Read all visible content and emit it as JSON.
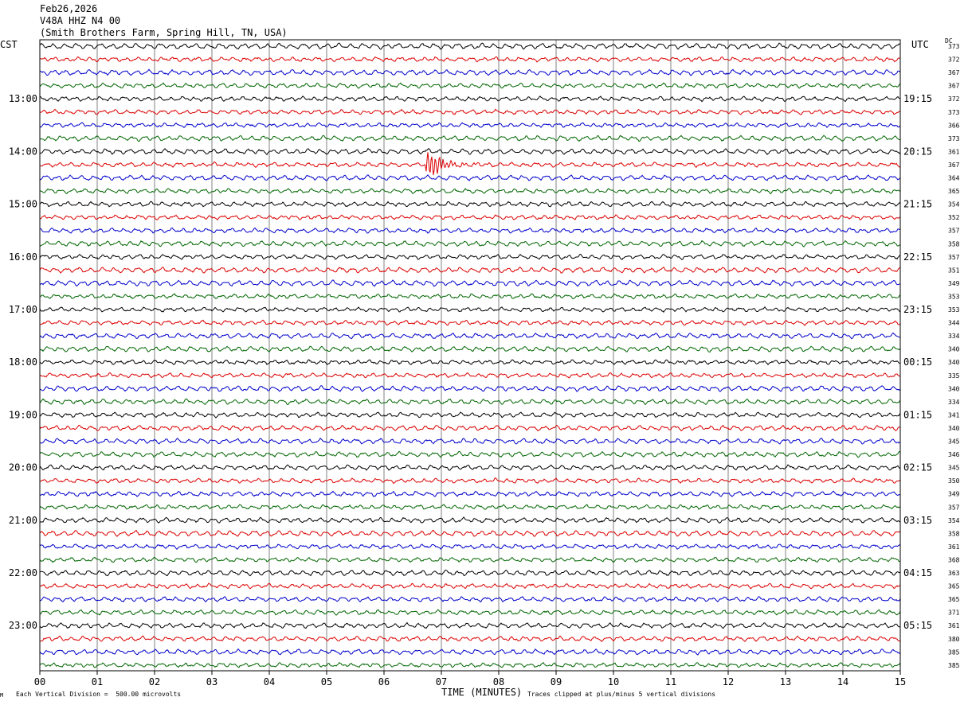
{
  "header": {
    "date": "Feb26,2026",
    "station": "V48A HHZ N4 00",
    "location": "(Smith Brothers Farm, Spring Hill, TN, USA)"
  },
  "axis_labels": {
    "left_timezone": "CST",
    "right_timezone": "UTC",
    "dc_label": "DC",
    "xlabel": "TIME (MINUTES)"
  },
  "footer": {
    "vertical_division": "Each Vertical Division =  500.00 microvolts",
    "clip_note": "Traces clipped at plus/minus 5 vertical divisions",
    "logo": "M"
  },
  "chart_data": {
    "type": "line",
    "xlim": [
      0,
      15
    ],
    "x_ticks": [
      "00",
      "01",
      "02",
      "03",
      "04",
      "05",
      "06",
      "07",
      "08",
      "09",
      "10",
      "11",
      "12",
      "13",
      "14",
      "15"
    ],
    "rows": 48,
    "trace_colors": [
      "#000000",
      "#dd0000",
      "#0000cc",
      "#006600"
    ],
    "left_hour_labels": [
      {
        "row": 4,
        "label": "13:00"
      },
      {
        "row": 8,
        "label": "14:00"
      },
      {
        "row": 12,
        "label": "15:00"
      },
      {
        "row": 16,
        "label": "16:00"
      },
      {
        "row": 20,
        "label": "17:00"
      },
      {
        "row": 24,
        "label": "18:00"
      },
      {
        "row": 28,
        "label": "19:00"
      },
      {
        "row": 32,
        "label": "20:00"
      },
      {
        "row": 36,
        "label": "21:00"
      },
      {
        "row": 40,
        "label": "22:00"
      },
      {
        "row": 44,
        "label": "23:00"
      }
    ],
    "right_hour_labels": [
      {
        "row": 4,
        "label": "19:15"
      },
      {
        "row": 8,
        "label": "20:15"
      },
      {
        "row": 12,
        "label": "21:15"
      },
      {
        "row": 16,
        "label": "22:15"
      },
      {
        "row": 20,
        "label": "23:15"
      },
      {
        "row": 24,
        "label": "00:15"
      },
      {
        "row": 28,
        "label": "01:15"
      },
      {
        "row": 32,
        "label": "02:15"
      },
      {
        "row": 36,
        "label": "03:15"
      },
      {
        "row": 40,
        "label": "04:15"
      },
      {
        "row": 44,
        "label": "05:15"
      }
    ],
    "dc_offsets": [
      "373",
      "372",
      "367",
      "367",
      "372",
      "373",
      "366",
      "373",
      "361",
      "367",
      "364",
      "365",
      "354",
      "352",
      "357",
      "358",
      "357",
      "351",
      "349",
      "353",
      "353",
      "344",
      "334",
      "340",
      "340",
      "335",
      "340",
      "334",
      "341",
      "340",
      "345",
      "346",
      "345",
      "350",
      "349",
      "357",
      "354",
      "358",
      "361",
      "368",
      "363",
      "365",
      "365",
      "371",
      "361",
      "380",
      "385",
      "385"
    ],
    "events": [
      {
        "row": 9,
        "minute_start": 6.72,
        "minute_end": 7.9,
        "peak_divisions": 1.2
      }
    ]
  }
}
